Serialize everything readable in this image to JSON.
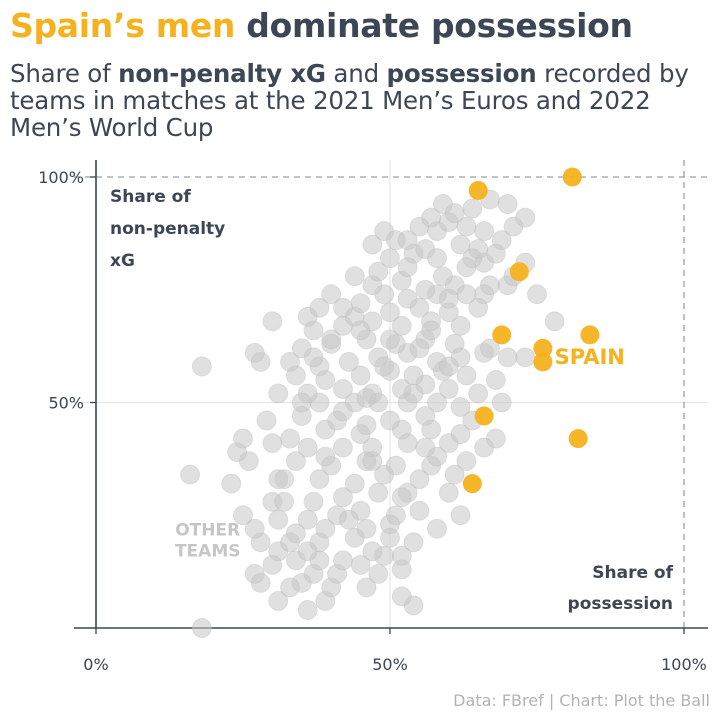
{
  "headline": {
    "highlight": "Spain’s men",
    "rest": " dominate possession"
  },
  "subtitle": {
    "p1": "Share of ",
    "b1": "non-penalty xG",
    "p2": " and ",
    "b2": "possession",
    "p3": " recorded by teams in matches at the 2021 Men’s Euros and 2022 Men’s World Cup"
  },
  "caption": "Data: FBref | Chart: Plot the Ball",
  "colors": {
    "spain": "#f5b21e",
    "other": "#c6c6c6",
    "text": "#3d4654",
    "grid": "#e6e6e6"
  },
  "chart_data": {
    "type": "scatter",
    "xlim": [
      0,
      100
    ],
    "ylim": [
      0,
      100
    ],
    "x_ticks": [
      {
        "value": 0,
        "label": "0%"
      },
      {
        "value": 50,
        "label": "50%"
      },
      {
        "value": 100,
        "label": "100%"
      }
    ],
    "y_ticks": [
      {
        "value": 50,
        "label": "50%"
      },
      {
        "value": 100,
        "label": "100%"
      }
    ],
    "xlabel": [
      "Share of",
      "possession"
    ],
    "ylabel": [
      "Share of",
      "non-penalty",
      "xG"
    ],
    "grid": true,
    "reference_lines": {
      "x": 100,
      "y": 100,
      "style": "dashed"
    },
    "annotations": [
      {
        "text": "SPAIN",
        "series": "spain",
        "x": 78,
        "y": 58.5
      },
      {
        "text": "OTHER",
        "series": "other",
        "x": 19,
        "y": 20.5
      },
      {
        "text": "TEAMS",
        "series": "other",
        "x": 19,
        "y": 15.8
      }
    ],
    "series": [
      {
        "id": "spain",
        "points": [
          [
            81,
            100
          ],
          [
            65,
            97
          ],
          [
            72,
            79
          ],
          [
            69,
            65
          ],
          [
            84,
            65
          ],
          [
            76,
            62
          ],
          [
            76,
            59
          ],
          [
            66,
            47
          ],
          [
            82,
            42
          ],
          [
            64,
            32
          ]
        ]
      },
      {
        "id": "other",
        "points": [
          [
            18,
            0
          ],
          [
            36,
            4
          ],
          [
            54,
            5
          ],
          [
            52,
            7
          ],
          [
            39,
            6
          ],
          [
            31,
            6
          ],
          [
            33,
            9
          ],
          [
            40,
            9
          ],
          [
            46,
            9
          ],
          [
            28,
            10
          ],
          [
            35,
            10
          ],
          [
            37,
            12
          ],
          [
            41,
            12
          ],
          [
            48,
            12
          ],
          [
            52,
            13
          ],
          [
            30,
            14
          ],
          [
            34,
            15
          ],
          [
            45,
            14
          ],
          [
            42,
            15
          ],
          [
            49,
            16
          ],
          [
            31,
            17
          ],
          [
            36,
            17
          ],
          [
            47,
            17
          ],
          [
            52,
            16
          ],
          [
            28,
            19
          ],
          [
            33,
            19
          ],
          [
            38,
            19
          ],
          [
            44,
            20
          ],
          [
            50,
            20
          ],
          [
            54,
            19
          ],
          [
            27,
            22
          ],
          [
            34,
            21
          ],
          [
            39,
            22
          ],
          [
            46,
            22
          ],
          [
            50,
            23
          ],
          [
            58,
            22
          ],
          [
            25,
            25
          ],
          [
            31,
            24
          ],
          [
            36,
            24
          ],
          [
            41,
            25
          ],
          [
            45,
            26
          ],
          [
            51,
            25
          ],
          [
            55,
            26
          ],
          [
            62,
            25
          ],
          [
            23,
            32
          ],
          [
            30,
            28
          ],
          [
            37,
            28
          ],
          [
            42,
            29
          ],
          [
            48,
            30
          ],
          [
            53,
            30
          ],
          [
            60,
            30
          ],
          [
            16,
            34
          ],
          [
            32,
            33
          ],
          [
            38,
            33
          ],
          [
            44,
            32
          ],
          [
            49,
            34
          ],
          [
            55,
            33
          ],
          [
            57,
            36
          ],
          [
            26,
            37
          ],
          [
            34,
            37
          ],
          [
            40,
            36
          ],
          [
            46,
            37
          ],
          [
            51,
            36
          ],
          [
            58,
            38
          ],
          [
            63,
            37
          ],
          [
            24,
            39
          ],
          [
            30,
            41
          ],
          [
            36,
            40
          ],
          [
            42,
            40
          ],
          [
            47,
            40
          ],
          [
            53,
            41
          ],
          [
            60,
            41
          ],
          [
            66,
            40
          ],
          [
            25,
            42
          ],
          [
            33,
            42
          ],
          [
            39,
            44
          ],
          [
            45,
            43
          ],
          [
            52,
            44
          ],
          [
            62,
            43
          ],
          [
            68,
            42
          ],
          [
            29,
            46
          ],
          [
            35,
            47
          ],
          [
            41,
            46
          ],
          [
            46,
            45
          ],
          [
            50,
            46
          ],
          [
            56,
            47
          ],
          [
            64,
            46
          ],
          [
            38,
            50
          ],
          [
            44,
            50
          ],
          [
            48,
            50
          ],
          [
            53,
            50
          ],
          [
            58,
            50
          ],
          [
            62,
            49
          ],
          [
            69,
            50
          ],
          [
            31,
            52
          ],
          [
            36,
            52
          ],
          [
            42,
            53
          ],
          [
            47,
            52
          ],
          [
            52,
            53
          ],
          [
            56,
            54
          ],
          [
            60,
            53
          ],
          [
            65,
            52
          ],
          [
            34,
            56
          ],
          [
            39,
            55
          ],
          [
            45,
            56
          ],
          [
            50,
            57
          ],
          [
            54,
            56
          ],
          [
            59,
            57
          ],
          [
            63,
            56
          ],
          [
            68,
            55
          ],
          [
            28,
            59
          ],
          [
            33,
            59
          ],
          [
            38,
            58
          ],
          [
            43,
            59
          ],
          [
            48,
            60
          ],
          [
            53,
            61
          ],
          [
            58,
            59
          ],
          [
            66,
            61
          ],
          [
            70,
            60
          ],
          [
            18,
            58
          ],
          [
            35,
            62
          ],
          [
            40,
            63
          ],
          [
            46,
            64
          ],
          [
            51,
            63
          ],
          [
            56,
            64
          ],
          [
            61,
            63
          ],
          [
            67,
            62
          ],
          [
            73,
            60
          ],
          [
            27,
            61
          ],
          [
            37,
            66
          ],
          [
            42,
            67
          ],
          [
            47,
            68
          ],
          [
            52,
            67
          ],
          [
            57,
            68
          ],
          [
            62,
            67
          ],
          [
            30,
            68
          ],
          [
            36,
            69
          ],
          [
            44,
            69
          ],
          [
            50,
            70
          ],
          [
            55,
            71
          ],
          [
            60,
            70
          ],
          [
            65,
            71
          ],
          [
            78,
            68
          ],
          [
            38,
            71
          ],
          [
            45,
            72
          ],
          [
            49,
            74
          ],
          [
            53,
            73
          ],
          [
            58,
            74
          ],
          [
            63,
            74
          ],
          [
            75,
            74
          ],
          [
            40,
            74
          ],
          [
            47,
            76
          ],
          [
            52,
            77
          ],
          [
            56,
            75
          ],
          [
            61,
            76
          ],
          [
            67,
            76
          ],
          [
            70,
            76
          ],
          [
            48,
            79
          ],
          [
            53,
            80
          ],
          [
            59,
            78
          ],
          [
            63,
            80
          ],
          [
            66,
            81
          ],
          [
            71,
            78
          ],
          [
            50,
            82
          ],
          [
            54,
            83
          ],
          [
            58,
            82
          ],
          [
            64,
            82
          ],
          [
            68,
            83
          ],
          [
            73,
            81
          ],
          [
            47,
            85
          ],
          [
            51,
            86
          ],
          [
            56,
            84
          ],
          [
            62,
            85
          ],
          [
            65,
            84
          ],
          [
            69,
            86
          ],
          [
            49,
            88
          ],
          [
            55,
            89
          ],
          [
            58,
            88
          ],
          [
            60,
            90
          ],
          [
            63,
            89
          ],
          [
            66,
            88
          ],
          [
            71,
            89
          ],
          [
            57,
            91
          ],
          [
            61,
            92
          ],
          [
            64,
            93
          ],
          [
            70,
            94
          ],
          [
            73,
            91
          ],
          [
            59,
            94
          ],
          [
            67,
            95
          ],
          [
            53,
            86
          ],
          [
            44,
            78
          ],
          [
            40,
            64
          ],
          [
            35,
            50
          ],
          [
            42,
            48
          ],
          [
            57,
            44
          ],
          [
            60,
            58
          ],
          [
            55,
            62
          ],
          [
            45,
            66
          ],
          [
            49,
            58
          ],
          [
            37,
            60
          ],
          [
            32,
            28
          ],
          [
            43,
            24
          ],
          [
            61,
            34
          ],
          [
            56,
            40
          ],
          [
            39,
            38
          ],
          [
            31,
            33
          ],
          [
            46,
            51
          ],
          [
            54,
            52
          ],
          [
            62,
            60
          ],
          [
            66,
            74
          ],
          [
            50,
            64
          ],
          [
            42,
            71
          ],
          [
            47,
            37
          ],
          [
            52,
            29
          ],
          [
            27,
            12
          ],
          [
            38,
            15
          ],
          [
            60,
            73
          ],
          [
            57,
            66
          ]
        ]
      }
    ]
  }
}
